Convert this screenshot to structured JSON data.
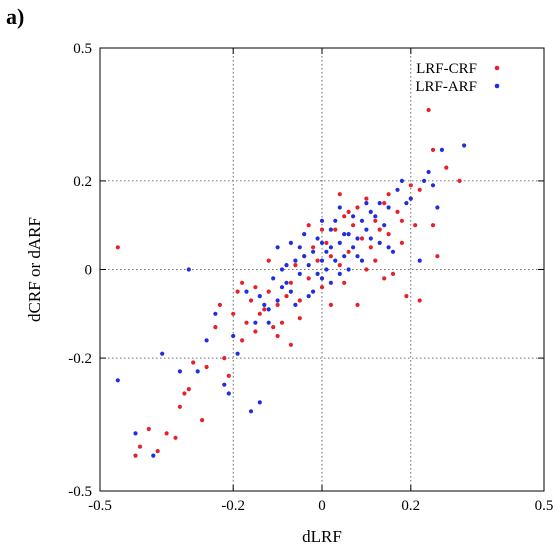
{
  "panel_label": "a)",
  "chart_data": {
    "type": "scatter",
    "title": "",
    "xlabel": "dLRF",
    "ylabel": "dCRF or dARF",
    "xlim": [
      -0.5,
      0.5
    ],
    "ylim": [
      -0.5,
      0.5
    ],
    "xticks": [
      "-0.5",
      "-0.2",
      "0",
      "0.2",
      "0.5"
    ],
    "xtick_values": [
      -0.5,
      -0.2,
      0,
      0.2,
      0.5
    ],
    "yticks": [
      "-0.5",
      "-0.2",
      "0",
      "0.2",
      "0.5"
    ],
    "ytick_values": [
      -0.5,
      -0.2,
      0,
      0.2,
      0.5
    ],
    "grid": true,
    "legend_position": "top-right",
    "series": [
      {
        "name": "LRF-CRF",
        "color": "#e8202a",
        "points": [
          [
            -0.46,
            0.05
          ],
          [
            -0.42,
            -0.42
          ],
          [
            -0.41,
            -0.4
          ],
          [
            -0.39,
            -0.36
          ],
          [
            -0.37,
            -0.41
          ],
          [
            -0.35,
            -0.37
          ],
          [
            -0.33,
            -0.38
          ],
          [
            -0.32,
            -0.31
          ],
          [
            -0.31,
            -0.28
          ],
          [
            -0.3,
            -0.27
          ],
          [
            -0.29,
            -0.21
          ],
          [
            -0.27,
            -0.34
          ],
          [
            -0.26,
            -0.22
          ],
          [
            -0.24,
            -0.13
          ],
          [
            -0.23,
            -0.08
          ],
          [
            -0.22,
            -0.2
          ],
          [
            -0.21,
            -0.24
          ],
          [
            -0.2,
            -0.1
          ],
          [
            -0.19,
            -0.05
          ],
          [
            -0.18,
            -0.03
          ],
          [
            -0.17,
            -0.12
          ],
          [
            -0.16,
            -0.07
          ],
          [
            -0.15,
            -0.14
          ],
          [
            -0.14,
            -0.1
          ],
          [
            -0.13,
            -0.09
          ],
          [
            -0.12,
            -0.05
          ],
          [
            -0.11,
            -0.13
          ],
          [
            -0.1,
            -0.08
          ],
          [
            -0.09,
            -0.12
          ],
          [
            -0.08,
            -0.06
          ],
          [
            -0.07,
            -0.03
          ],
          [
            -0.06,
            0.01
          ],
          [
            -0.05,
            -0.07
          ],
          [
            -0.04,
            0.03
          ],
          [
            -0.03,
            -0.02
          ],
          [
            -0.02,
            0.05
          ],
          [
            -0.01,
            0.02
          ],
          [
            0.0,
            -0.04
          ],
          [
            0.01,
            0.06
          ],
          [
            0.02,
            0.03
          ],
          [
            0.03,
            0.09
          ],
          [
            0.04,
            0.01
          ],
          [
            0.05,
            0.12
          ],
          [
            0.06,
            0.04
          ],
          [
            0.07,
            0.1
          ],
          [
            0.08,
            0.14
          ],
          [
            0.09,
            0.07
          ],
          [
            0.1,
            0.16
          ],
          [
            0.11,
            0.05
          ],
          [
            0.12,
            0.11
          ],
          [
            0.13,
            0.09
          ],
          [
            0.14,
            0.15
          ],
          [
            0.15,
            0.08
          ],
          [
            0.16,
            -0.01
          ],
          [
            0.17,
            0.13
          ],
          [
            0.18,
            0.06
          ],
          [
            0.19,
            -0.06
          ],
          [
            0.2,
            0.19
          ],
          [
            0.21,
            0.1
          ],
          [
            0.22,
            0.18
          ],
          [
            0.24,
            0.36
          ],
          [
            0.25,
            0.27
          ],
          [
            0.26,
            0.03
          ],
          [
            0.28,
            0.23
          ],
          [
            0.31,
            0.2
          ],
          [
            -0.1,
            -0.15
          ],
          [
            -0.05,
            -0.11
          ],
          [
            0.0,
            0.09
          ],
          [
            0.05,
            -0.03
          ],
          [
            0.08,
            -0.08
          ],
          [
            -0.12,
            0.02
          ],
          [
            -0.03,
            0.1
          ],
          [
            0.12,
            0.02
          ],
          [
            0.15,
            0.17
          ],
          [
            -0.07,
            -0.17
          ],
          [
            0.02,
            -0.08
          ],
          [
            0.06,
            0.13
          ],
          [
            0.1,
            0.0
          ],
          [
            -0.15,
            -0.04
          ],
          [
            0.18,
            0.11
          ],
          [
            0.22,
            -0.07
          ],
          [
            0.25,
            0.1
          ],
          [
            -0.18,
            -0.16
          ],
          [
            0.04,
            0.17
          ],
          [
            0.14,
            -0.02
          ]
        ]
      },
      {
        "name": "LRF-ARF",
        "color": "#1f2ee0",
        "points": [
          [
            -0.46,
            -0.25
          ],
          [
            -0.42,
            -0.37
          ],
          [
            -0.38,
            -0.42
          ],
          [
            -0.36,
            -0.19
          ],
          [
            -0.32,
            -0.23
          ],
          [
            -0.3,
            0.0
          ],
          [
            -0.28,
            -0.23
          ],
          [
            -0.26,
            -0.16
          ],
          [
            -0.24,
            -0.1
          ],
          [
            -0.22,
            -0.26
          ],
          [
            -0.21,
            -0.28
          ],
          [
            -0.2,
            -0.15
          ],
          [
            -0.19,
            -0.19
          ],
          [
            -0.17,
            -0.05
          ],
          [
            -0.16,
            -0.32
          ],
          [
            -0.15,
            -0.12
          ],
          [
            -0.14,
            -0.3
          ],
          [
            -0.13,
            -0.08
          ],
          [
            -0.12,
            -0.09
          ],
          [
            -0.11,
            -0.02
          ],
          [
            -0.1,
            -0.07
          ],
          [
            -0.09,
            -0.04
          ],
          [
            -0.08,
            0.01
          ],
          [
            -0.07,
            -0.05
          ],
          [
            -0.06,
            0.02
          ],
          [
            -0.05,
            -0.01
          ],
          [
            -0.04,
            0.03
          ],
          [
            -0.03,
            0.01
          ],
          [
            -0.02,
            0.04
          ],
          [
            -0.01,
            -0.01
          ],
          [
            0.0,
            0.02
          ],
          [
            0.01,
            0.0
          ],
          [
            0.02,
            0.05
          ],
          [
            0.03,
            0.02
          ],
          [
            0.04,
            0.06
          ],
          [
            0.05,
            0.03
          ],
          [
            0.06,
            0.08
          ],
          [
            0.07,
            0.05
          ],
          [
            0.08,
            0.07
          ],
          [
            0.09,
            0.11
          ],
          [
            0.1,
            0.09
          ],
          [
            0.11,
            0.13
          ],
          [
            0.12,
            0.12
          ],
          [
            0.13,
            0.06
          ],
          [
            0.14,
            0.1
          ],
          [
            0.15,
            0.14
          ],
          [
            0.16,
            0.04
          ],
          [
            0.17,
            0.18
          ],
          [
            0.18,
            0.2
          ],
          [
            0.19,
            0.15
          ],
          [
            0.2,
            0.16
          ],
          [
            0.22,
            0.02
          ],
          [
            0.23,
            0.2
          ],
          [
            0.24,
            0.22
          ],
          [
            0.25,
            0.19
          ],
          [
            0.26,
            0.14
          ],
          [
            0.27,
            0.27
          ],
          [
            0.32,
            0.28
          ],
          [
            -0.1,
            0.05
          ],
          [
            -0.06,
            -0.08
          ],
          [
            -0.02,
            -0.05
          ],
          [
            0.0,
            -0.02
          ],
          [
            0.02,
            0.09
          ],
          [
            0.04,
            -0.01
          ],
          [
            0.06,
            0.0
          ],
          [
            0.08,
            0.03
          ],
          [
            0.0,
            0.06
          ],
          [
            -0.04,
            0.08
          ],
          [
            0.03,
            0.11
          ],
          [
            0.07,
            0.12
          ],
          [
            -0.08,
            -0.03
          ],
          [
            0.01,
            0.04
          ],
          [
            -0.01,
            0.07
          ],
          [
            0.05,
            0.08
          ],
          [
            0.09,
            0.02
          ],
          [
            -0.03,
            -0.06
          ],
          [
            0.11,
            0.07
          ],
          [
            -0.07,
            0.06
          ],
          [
            -0.12,
            -0.12
          ],
          [
            0.13,
            0.15
          ],
          [
            -0.09,
            0.0
          ],
          [
            0.1,
            0.15
          ],
          [
            0.02,
            -0.03
          ],
          [
            -0.05,
            0.05
          ],
          [
            0.04,
            0.14
          ],
          [
            0.0,
            0.11
          ],
          [
            -0.14,
            -0.06
          ],
          [
            0.15,
            0.05
          ]
        ]
      }
    ]
  }
}
